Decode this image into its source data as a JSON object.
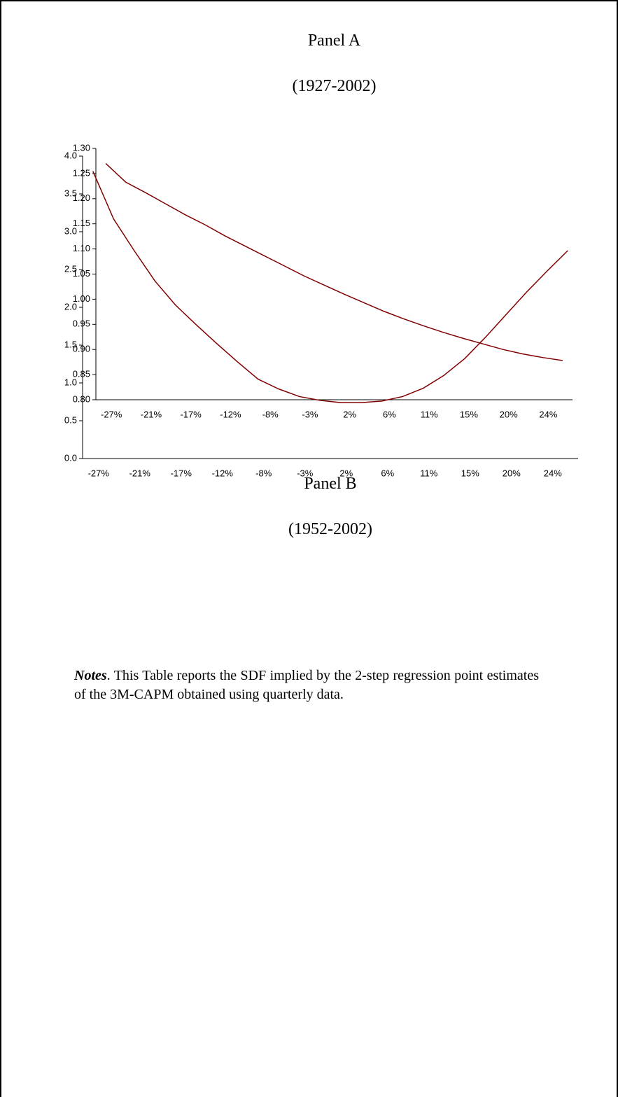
{
  "chart_data": [
    {
      "type": "line",
      "title": "Panel A",
      "subtitle": "(1927-2002)",
      "categories": [
        "-27%",
        null,
        "-21%",
        null,
        "-17%",
        null,
        "-12%",
        null,
        "-8%",
        null,
        "-3%",
        null,
        "2%",
        null,
        "6%",
        null,
        "11%",
        null,
        "15%",
        null,
        "20%",
        null,
        "24%",
        null
      ],
      "values": [
        1.27,
        1.233,
        1.212,
        1.19,
        1.168,
        1.148,
        1.126,
        1.106,
        1.086,
        1.066,
        1.046,
        1.028,
        1.01,
        0.993,
        0.976,
        0.961,
        0.947,
        0.934,
        0.922,
        0.911,
        0.9,
        0.891,
        0.884,
        0.878
      ],
      "color": "#800000",
      "ylim": [
        0.8,
        1.3
      ],
      "yticks": [
        {
          "value": 0.8,
          "label": "0.80"
        },
        0.85,
        {
          "value": 0.9,
          "label": "0.90"
        },
        0.95,
        {
          "value": 1.0,
          "label": "1.00"
        },
        1.05,
        {
          "value": 1.1,
          "label": "1.10"
        },
        1.15,
        {
          "value": 1.2,
          "label": "1.20"
        },
        1.25,
        {
          "value": 1.3,
          "label": "1.30"
        }
      ]
    },
    {
      "type": "line",
      "title": "Panel B",
      "subtitle": "(1952-2002)",
      "categories": [
        "-27%",
        null,
        "-21%",
        null,
        "-17%",
        null,
        "-12%",
        null,
        "-8%",
        null,
        "-3%",
        null,
        "2%",
        null,
        "6%",
        null,
        "11%",
        null,
        "15%",
        null,
        "20%",
        null,
        "24%",
        null
      ],
      "values": [
        3.8,
        3.17,
        2.75,
        2.35,
        2.03,
        1.77,
        1.52,
        1.28,
        1.05,
        0.92,
        0.82,
        0.77,
        0.74,
        0.74,
        0.76,
        0.82,
        0.93,
        1.1,
        1.32,
        1.6,
        1.9,
        2.2,
        2.48,
        2.75
      ],
      "color": "#800000",
      "ylim": [
        0,
        4
      ],
      "yticks": [
        {
          "value": 0,
          "label": "0.0"
        },
        0.5,
        {
          "value": 1,
          "label": "1.0"
        },
        1.5,
        {
          "value": 2,
          "label": "2.0"
        },
        2.5,
        {
          "value": 3,
          "label": "3.0"
        },
        3.5,
        {
          "value": 4,
          "label": "4.0"
        }
      ]
    }
  ],
  "notes": {
    "label": "Notes",
    "text": ". This Table reports the SDF implied by the 2-step regression point estimates of the 3M-CAPM obtained using quarterly data."
  }
}
